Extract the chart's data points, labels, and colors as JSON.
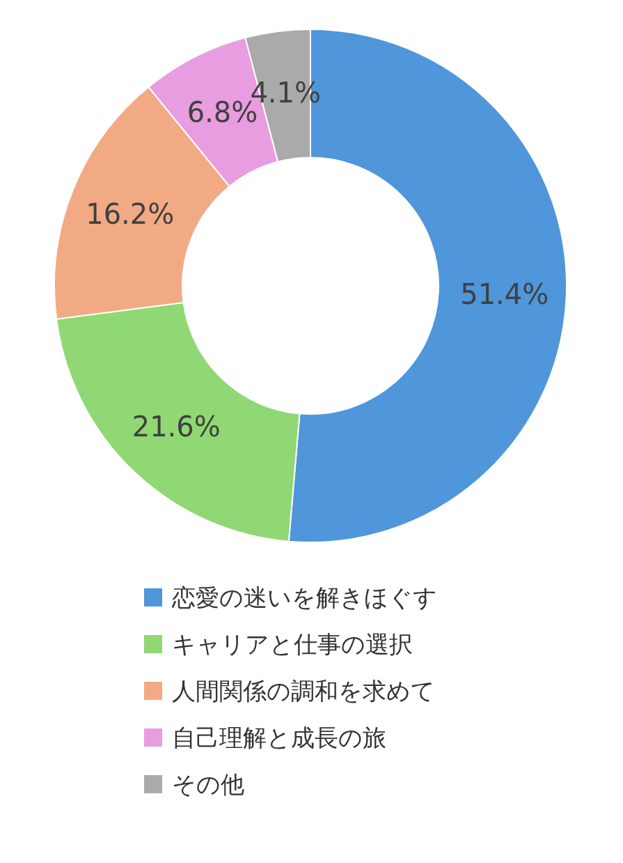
{
  "chart_data": {
    "type": "donut",
    "categories": [
      "恋愛の迷いを解きほぐす",
      "キャリアと仕事の選択",
      "人間関係の調和を求めて",
      "自己理解と成長の旅",
      "その他"
    ],
    "values": [
      51.4,
      21.6,
      16.2,
      6.8,
      4.1
    ],
    "value_labels": [
      "51.4%",
      "21.6%",
      "16.2%",
      "6.8%",
      "4.1%"
    ],
    "colors": [
      "#4f96db",
      "#8fd873",
      "#f2aa84",
      "#e79ddf",
      "#aaaaaa"
    ],
    "legend": "bottom"
  }
}
